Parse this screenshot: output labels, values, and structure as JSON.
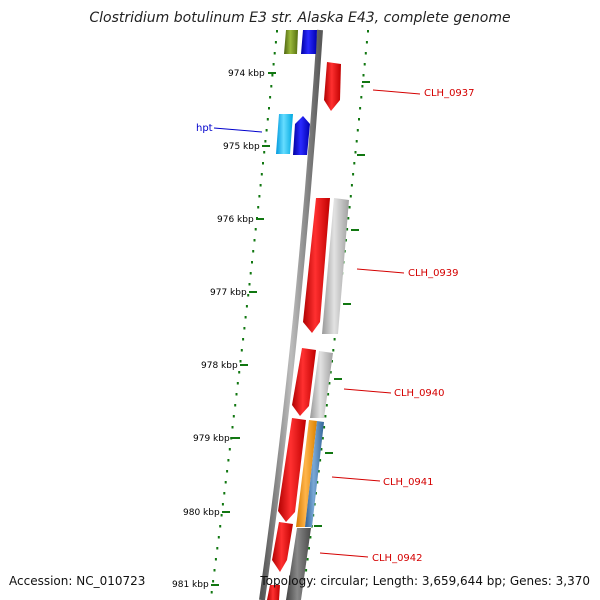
{
  "title": "Clostridium botulinum E3 str. Alaska E43, complete genome",
  "footer": {
    "accession": "Accession: NC_010723",
    "topology": "Topology: circular; Length: 3,659,644 bp; Genes: 3,370"
  },
  "kbp_labels": [
    "974 kbp",
    "975 kbp",
    "976 kbp",
    "977 kbp",
    "978 kbp",
    "979 kbp",
    "980 kbp",
    "981 kbp"
  ],
  "genes": [
    {
      "label": "hpt",
      "color": "#0000cc"
    },
    {
      "label": "CLH_0937",
      "color": "#d40000"
    },
    {
      "label": "CLH_0939",
      "color": "#d40000"
    },
    {
      "label": "CLH_0940",
      "color": "#d40000"
    },
    {
      "label": "CLH_0941",
      "color": "#d40000"
    },
    {
      "label": "CLH_0942",
      "color": "#d40000"
    }
  ],
  "colors": {
    "backbone": "#7a7a7a",
    "gene_red": "#ee1111",
    "gene_blue": "#0000ee",
    "gene_cyan": "#22ccff",
    "gene_grey": "#b8b8b8",
    "gene_dark_grey": "#666666",
    "gene_orange": "#f39a1e",
    "gene_steel": "#4f83b8",
    "gene_olive": "#6f8a1a",
    "tick_green": "#117711"
  }
}
